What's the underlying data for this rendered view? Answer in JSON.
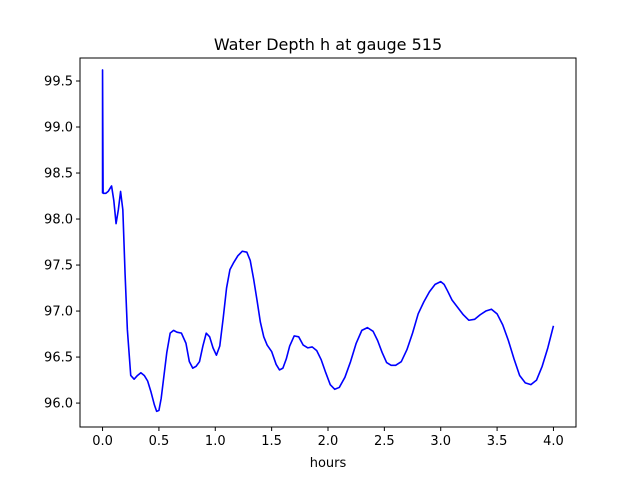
{
  "chart_data": {
    "type": "line",
    "title": "Water Depth h at gauge 515",
    "xlabel": "hours",
    "ylabel": "",
    "xlim": [
      -0.2,
      4.2
    ],
    "ylim": [
      95.74,
      99.75
    ],
    "x_ticks": [
      0.0,
      0.5,
      1.0,
      1.5,
      2.0,
      2.5,
      3.0,
      3.5,
      4.0
    ],
    "x_tick_labels": [
      "0.0",
      "0.5",
      "1.0",
      "1.5",
      "2.0",
      "2.5",
      "3.0",
      "3.5",
      "4.0"
    ],
    "y_ticks": [
      96.0,
      96.5,
      97.0,
      97.5,
      98.0,
      98.5,
      99.0,
      99.5
    ],
    "y_tick_labels": [
      "96.0",
      "96.5",
      "97.0",
      "97.5",
      "98.0",
      "98.5",
      "99.0",
      "99.5"
    ],
    "grid": false,
    "legend": "none",
    "series": [
      {
        "color": "#0000ff",
        "x": [
          0.0,
          0.0,
          0.005,
          0.03,
          0.05,
          0.08,
          0.1,
          0.12,
          0.14,
          0.16,
          0.18,
          0.2,
          0.22,
          0.25,
          0.28,
          0.31,
          0.34,
          0.37,
          0.4,
          0.43,
          0.46,
          0.48,
          0.5,
          0.52,
          0.54,
          0.57,
          0.6,
          0.63,
          0.66,
          0.7,
          0.74,
          0.77,
          0.8,
          0.83,
          0.86,
          0.89,
          0.92,
          0.95,
          0.98,
          1.01,
          1.04,
          1.07,
          1.1,
          1.13,
          1.16,
          1.2,
          1.24,
          1.28,
          1.31,
          1.34,
          1.37,
          1.4,
          1.43,
          1.46,
          1.5,
          1.54,
          1.57,
          1.6,
          1.63,
          1.66,
          1.7,
          1.74,
          1.78,
          1.82,
          1.86,
          1.9,
          1.94,
          1.98,
          2.02,
          2.06,
          2.1,
          2.15,
          2.2,
          2.25,
          2.3,
          2.35,
          2.4,
          2.44,
          2.48,
          2.52,
          2.56,
          2.6,
          2.65,
          2.7,
          2.75,
          2.8,
          2.85,
          2.9,
          2.95,
          3.0,
          3.03,
          3.06,
          3.1,
          3.15,
          3.2,
          3.25,
          3.3,
          3.35,
          3.4,
          3.45,
          3.5,
          3.55,
          3.6,
          3.65,
          3.7,
          3.75,
          3.8,
          3.85,
          3.9,
          3.95,
          4.0
        ],
        "y": [
          98.28,
          99.62,
          98.28,
          98.28,
          98.3,
          98.36,
          98.2,
          97.95,
          98.1,
          98.3,
          98.1,
          97.4,
          96.8,
          96.3,
          96.26,
          96.3,
          96.33,
          96.3,
          96.24,
          96.12,
          95.98,
          95.91,
          95.92,
          96.05,
          96.25,
          96.55,
          96.76,
          96.79,
          96.77,
          96.76,
          96.65,
          96.45,
          96.38,
          96.4,
          96.45,
          96.62,
          96.76,
          96.72,
          96.6,
          96.52,
          96.62,
          96.92,
          97.25,
          97.45,
          97.52,
          97.6,
          97.65,
          97.64,
          97.55,
          97.35,
          97.12,
          96.88,
          96.72,
          96.63,
          96.56,
          96.42,
          96.36,
          96.38,
          96.48,
          96.62,
          96.73,
          96.72,
          96.63,
          96.6,
          96.61,
          96.57,
          96.47,
          96.33,
          96.2,
          96.15,
          96.17,
          96.28,
          96.45,
          96.65,
          96.79,
          96.82,
          96.78,
          96.68,
          96.55,
          96.44,
          96.41,
          96.41,
          96.45,
          96.58,
          96.76,
          96.97,
          97.1,
          97.21,
          97.29,
          97.32,
          97.29,
          97.22,
          97.12,
          97.04,
          96.96,
          96.9,
          96.91,
          96.96,
          97.0,
          97.02,
          96.97,
          96.85,
          96.68,
          96.48,
          96.3,
          96.22,
          96.2,
          96.25,
          96.4,
          96.6,
          96.84
        ]
      }
    ]
  }
}
